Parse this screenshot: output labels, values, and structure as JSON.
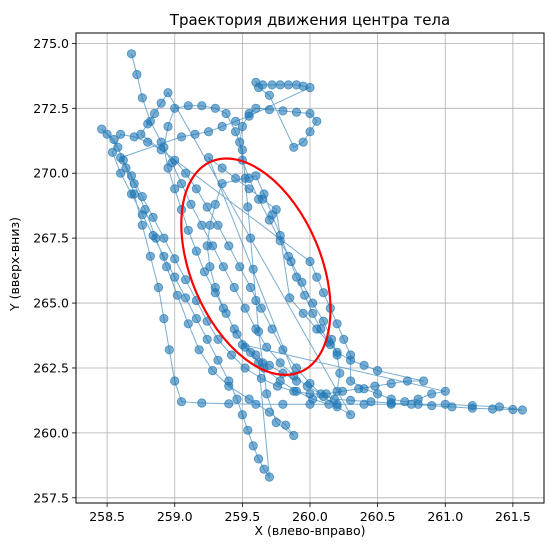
{
  "chart_data": {
    "type": "scatter",
    "title": "Траектория движения центра тела",
    "xlabel": "X (влево-вправо)",
    "ylabel": "Y (вверх-вниз)",
    "xlim": [
      258.27,
      261.73
    ],
    "ylim": [
      257.3,
      275.4
    ],
    "xticks": [
      258.5,
      259.0,
      259.5,
      260.0,
      260.5,
      261.0,
      261.5
    ],
    "yticks": [
      257.5,
      260.0,
      262.5,
      265.0,
      267.5,
      270.0,
      272.5,
      275.0
    ],
    "xtick_labels": [
      "258.5",
      "259.0",
      "259.5",
      "260.0",
      "260.5",
      "261.0",
      "261.5"
    ],
    "ytick_labels": [
      "257.5",
      "260.0",
      "262.5",
      "265.0",
      "267.5",
      "270.0",
      "272.5",
      "275.0"
    ],
    "grid": true,
    "colors": {
      "trajectory": "#1f77b4",
      "ellipse": "#ff0000",
      "grid": "#b0b0b0"
    },
    "trajectory": [
      [
        258.68,
        274.6
      ],
      [
        258.72,
        273.8
      ],
      [
        258.76,
        272.9
      ],
      [
        258.82,
        272.0
      ],
      [
        258.9,
        271.2
      ],
      [
        258.98,
        270.4
      ],
      [
        259.05,
        269.6
      ],
      [
        259.12,
        268.8
      ],
      [
        259.2,
        268.0
      ],
      [
        259.28,
        267.2
      ],
      [
        259.36,
        266.4
      ],
      [
        259.44,
        265.6
      ],
      [
        259.52,
        264.8
      ],
      [
        259.6,
        264.0
      ],
      [
        259.68,
        263.3
      ],
      [
        259.78,
        262.7
      ],
      [
        259.88,
        262.2
      ],
      [
        259.98,
        261.8
      ],
      [
        260.08,
        261.5
      ],
      [
        260.18,
        261.3
      ],
      [
        260.3,
        261.25
      ],
      [
        260.45,
        261.2
      ],
      [
        260.6,
        261.15
      ],
      [
        260.75,
        261.1
      ],
      [
        260.9,
        261.05
      ],
      [
        261.05,
        261.0
      ],
      [
        261.2,
        260.95
      ],
      [
        261.35,
        260.92
      ],
      [
        261.5,
        260.9
      ],
      [
        261.57,
        260.88
      ],
      [
        261.4,
        261.0
      ],
      [
        261.2,
        261.05
      ],
      [
        261.0,
        261.1
      ],
      [
        260.8,
        261.1
      ],
      [
        260.6,
        261.1
      ],
      [
        260.4,
        261.1
      ],
      [
        260.2,
        261.1
      ],
      [
        260.0,
        261.1
      ],
      [
        259.8,
        261.1
      ],
      [
        259.6,
        261.1
      ],
      [
        259.4,
        261.12
      ],
      [
        259.2,
        261.15
      ],
      [
        259.05,
        261.2
      ],
      [
        259.0,
        262.0
      ],
      [
        258.96,
        263.2
      ],
      [
        258.92,
        264.4
      ],
      [
        258.88,
        265.6
      ],
      [
        258.82,
        266.8
      ],
      [
        258.76,
        268.0
      ],
      [
        258.7,
        269.2
      ],
      [
        258.64,
        270.2
      ],
      [
        258.58,
        271.0
      ],
      [
        258.5,
        271.5
      ],
      [
        258.46,
        271.7
      ],
      [
        258.55,
        271.3
      ],
      [
        258.62,
        270.5
      ],
      [
        258.7,
        269.6
      ],
      [
        258.78,
        268.6
      ],
      [
        258.86,
        267.5
      ],
      [
        258.94,
        266.4
      ],
      [
        259.02,
        265.3
      ],
      [
        259.1,
        264.2
      ],
      [
        259.18,
        263.2
      ],
      [
        259.28,
        262.4
      ],
      [
        259.4,
        261.8
      ],
      [
        259.55,
        261.3
      ],
      [
        259.7,
        260.8
      ],
      [
        259.82,
        260.3
      ],
      [
        259.88,
        259.9
      ],
      [
        259.75,
        260.4
      ],
      [
        259.68,
        261.5
      ],
      [
        259.65,
        262.7
      ],
      [
        259.62,
        263.9
      ],
      [
        259.6,
        265.1
      ],
      [
        259.58,
        266.3
      ],
      [
        259.56,
        267.5
      ],
      [
        259.54,
        268.7
      ],
      [
        259.52,
        269.8
      ],
      [
        259.5,
        270.9
      ],
      [
        259.45,
        271.6
      ],
      [
        259.38,
        272.3
      ],
      [
        259.3,
        272.5
      ],
      [
        259.2,
        272.6
      ],
      [
        259.1,
        272.6
      ],
      [
        259.0,
        272.5
      ],
      [
        258.95,
        271.8
      ],
      [
        258.92,
        271.0
      ],
      [
        258.95,
        270.2
      ],
      [
        259.0,
        269.4
      ],
      [
        259.05,
        268.6
      ],
      [
        259.1,
        267.8
      ],
      [
        259.16,
        267.0
      ],
      [
        259.22,
        266.2
      ],
      [
        259.3,
        265.4
      ],
      [
        259.38,
        264.6
      ],
      [
        259.46,
        263.8
      ],
      [
        259.56,
        263.1
      ],
      [
        259.66,
        262.5
      ],
      [
        259.78,
        262.0
      ],
      [
        259.9,
        261.6
      ],
      [
        260.02,
        261.3
      ],
      [
        260.14,
        261.1
      ],
      [
        260.2,
        261.6
      ],
      [
        260.22,
        262.3
      ],
      [
        260.2,
        263.0
      ],
      [
        260.16,
        263.6
      ],
      [
        260.1,
        264.3
      ],
      [
        260.02,
        265.0
      ],
      [
        259.94,
        265.8
      ],
      [
        259.86,
        266.6
      ],
      [
        259.78,
        267.4
      ],
      [
        259.7,
        268.2
      ],
      [
        259.62,
        269.0
      ],
      [
        259.55,
        269.8
      ],
      [
        259.5,
        270.5
      ],
      [
        259.48,
        271.2
      ],
      [
        259.5,
        271.8
      ],
      [
        259.55,
        272.3
      ],
      [
        259.6,
        272.5
      ],
      [
        259.7,
        272.45
      ],
      [
        259.8,
        272.4
      ],
      [
        259.9,
        272.35
      ],
      [
        260.0,
        272.3
      ],
      [
        260.05,
        272.0
      ],
      [
        260.0,
        271.6
      ],
      [
        259.95,
        271.2
      ],
      [
        259.88,
        271.0
      ],
      [
        259.7,
        273.0
      ],
      [
        259.62,
        273.3
      ],
      [
        259.6,
        273.5
      ],
      [
        259.65,
        273.4
      ],
      [
        259.72,
        273.4
      ],
      [
        259.78,
        273.4
      ],
      [
        259.84,
        273.4
      ],
      [
        259.9,
        273.4
      ],
      [
        259.95,
        273.35
      ],
      [
        260.0,
        273.3
      ],
      [
        259.55,
        272.2
      ],
      [
        259.45,
        272.0
      ],
      [
        259.35,
        271.8
      ],
      [
        259.25,
        271.6
      ],
      [
        259.15,
        271.5
      ],
      [
        259.05,
        271.4
      ],
      [
        258.6,
        270.6
      ],
      [
        258.68,
        269.9
      ],
      [
        258.76,
        269.1
      ],
      [
        258.84,
        268.3
      ],
      [
        258.92,
        267.5
      ],
      [
        259.0,
        266.7
      ],
      [
        259.08,
        265.9
      ],
      [
        259.16,
        265.1
      ],
      [
        259.24,
        264.3
      ],
      [
        259.32,
        263.6
      ],
      [
        259.42,
        263.0
      ],
      [
        259.52,
        262.5
      ],
      [
        259.64,
        262.1
      ],
      [
        259.76,
        261.8
      ],
      [
        259.88,
        261.6
      ],
      [
        260.0,
        261.5
      ],
      [
        260.12,
        261.5
      ],
      [
        260.24,
        261.6
      ],
      [
        260.36,
        261.7
      ],
      [
        260.48,
        261.8
      ],
      [
        260.6,
        261.9
      ],
      [
        260.72,
        262.0
      ],
      [
        260.84,
        262.0
      ],
      [
        260.5,
        262.4
      ],
      [
        260.4,
        262.6
      ],
      [
        260.3,
        262.8
      ],
      [
        260.2,
        263.1
      ],
      [
        260.14,
        263.5
      ],
      [
        260.08,
        264.0
      ],
      [
        260.02,
        264.6
      ],
      [
        259.96,
        265.3
      ],
      [
        259.9,
        266.0
      ],
      [
        259.84,
        266.8
      ],
      [
        259.78,
        267.6
      ],
      [
        259.72,
        268.4
      ],
      [
        259.66,
        269.2
      ],
      [
        259.6,
        269.9
      ],
      [
        259.35,
        269.6
      ],
      [
        259.3,
        268.8
      ],
      [
        259.26,
        268.0
      ],
      [
        259.24,
        267.2
      ],
      [
        259.26,
        266.4
      ],
      [
        259.3,
        265.6
      ],
      [
        259.36,
        264.8
      ],
      [
        259.44,
        264.0
      ],
      [
        259.52,
        263.3
      ],
      [
        259.62,
        262.7
      ],
      [
        259.7,
        258.3
      ],
      [
        259.66,
        258.6
      ],
      [
        259.62,
        259.0
      ],
      [
        259.58,
        259.5
      ],
      [
        259.54,
        260.1
      ],
      [
        259.5,
        260.7
      ],
      [
        259.46,
        261.3
      ],
      [
        259.4,
        262.0
      ],
      [
        259.32,
        262.8
      ],
      [
        259.24,
        263.6
      ],
      [
        259.16,
        264.4
      ],
      [
        259.08,
        265.2
      ],
      [
        259.0,
        266.0
      ],
      [
        258.92,
        266.8
      ],
      [
        258.84,
        267.6
      ],
      [
        258.76,
        268.4
      ],
      [
        258.68,
        269.2
      ],
      [
        258.6,
        270.0
      ],
      [
        258.54,
        270.8
      ],
      [
        258.6,
        271.5
      ],
      [
        258.7,
        271.4
      ],
      [
        258.8,
        271.2
      ],
      [
        258.9,
        270.9
      ],
      [
        259.0,
        270.5
      ],
      [
        259.08,
        270.0
      ],
      [
        259.16,
        269.4
      ],
      [
        259.24,
        268.7
      ],
      [
        259.32,
        268.0
      ],
      [
        259.4,
        267.2
      ],
      [
        259.48,
        266.4
      ],
      [
        259.56,
        265.6
      ],
      [
        259.64,
        264.8
      ],
      [
        259.72,
        264.0
      ],
      [
        259.8,
        263.2
      ],
      [
        259.9,
        262.5
      ],
      [
        260.0,
        261.9
      ],
      [
        260.1,
        261.4
      ],
      [
        260.2,
        261.0
      ],
      [
        260.3,
        260.7
      ],
      [
        258.95,
        273.1
      ],
      [
        258.9,
        272.7
      ],
      [
        258.85,
        272.3
      ],
      [
        258.8,
        271.9
      ],
      [
        258.75,
        271.5
      ],
      [
        260.0,
        266.6
      ],
      [
        260.05,
        266.0
      ],
      [
        260.1,
        265.4
      ],
      [
        260.15,
        264.8
      ],
      [
        260.2,
        264.2
      ],
      [
        260.25,
        263.6
      ],
      [
        260.3,
        263.0
      ],
      [
        260.3,
        262.0
      ],
      [
        260.4,
        261.7
      ],
      [
        260.5,
        261.5
      ],
      [
        260.6,
        261.3
      ],
      [
        260.7,
        261.2
      ],
      [
        260.8,
        261.3
      ],
      [
        260.9,
        261.5
      ],
      [
        261.0,
        261.6
      ],
      [
        259.5,
        263.4
      ],
      [
        259.6,
        263.0
      ],
      [
        259.7,
        262.6
      ],
      [
        259.8,
        262.3
      ],
      [
        259.9,
        262.0
      ],
      [
        259.25,
        270.6
      ],
      [
        259.35,
        270.2
      ],
      [
        259.45,
        269.8
      ],
      [
        259.55,
        269.4
      ],
      [
        259.65,
        269.0
      ],
      [
        259.75,
        268.6
      ],
      [
        259.85,
        265.2
      ],
      [
        259.95,
        264.6
      ],
      [
        260.05,
        264.0
      ],
      [
        260.15,
        263.4
      ]
    ],
    "ellipse": {
      "cx": 259.6,
      "cy": 266.4,
      "rx_data": 0.48,
      "ry_data": 4.4,
      "tilt_deg": 23
    }
  }
}
